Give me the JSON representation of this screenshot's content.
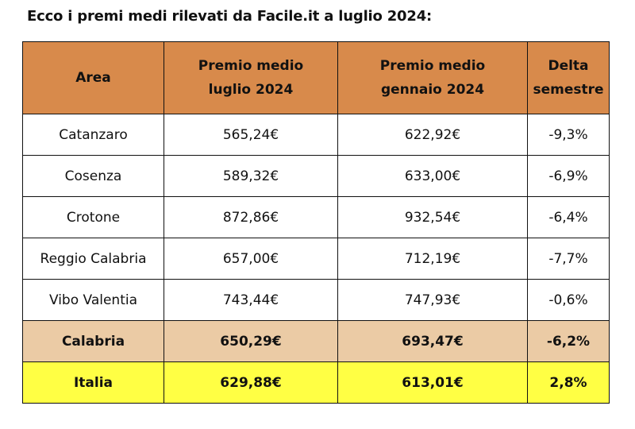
{
  "title": "Ecco i premi medi rilevati da Facile.it a luglio 2024:",
  "colors": {
    "header": "#D88A4B",
    "calabria_row": "#EBCBA5",
    "italia_row": "#FFFF44"
  },
  "headers": [
    "Area",
    "Premio medio luglio 2024",
    "Premio medio gennaio 2024",
    "Delta semestre"
  ],
  "rows": [
    [
      "Catanzaro",
      "565,24€",
      "622,92€",
      "-9,3%"
    ],
    [
      "Cosenza",
      "589,32€",
      "633,00€",
      "-6,9%"
    ],
    [
      "Crotone",
      "872,86€",
      "932,54€",
      "-6,4%"
    ],
    [
      "Reggio Calabria",
      "657,00€",
      "712,19€",
      "-7,7%"
    ],
    [
      "Vibo Valentia",
      "743,44€",
      "747,93€",
      "-0,6%"
    ],
    [
      "Calabria",
      "650,29€",
      "693,47€",
      "-6,2%"
    ],
    [
      "Italia",
      "629,88€",
      "613,01€",
      "2,8%"
    ]
  ]
}
